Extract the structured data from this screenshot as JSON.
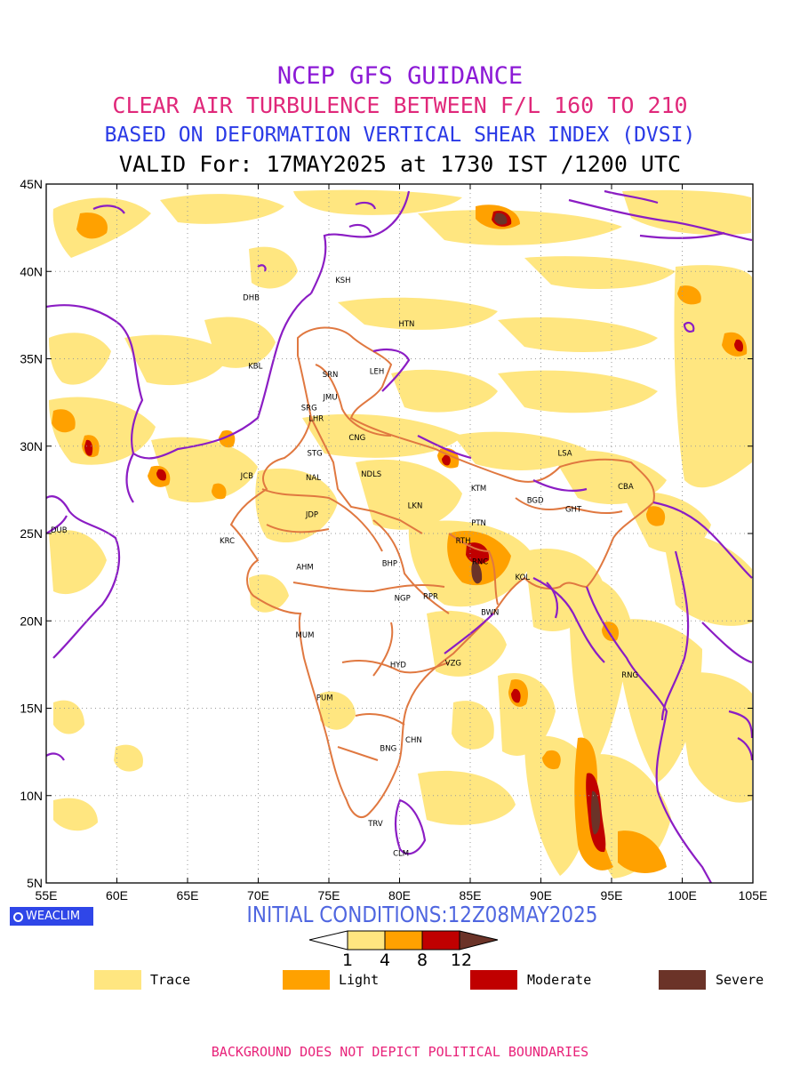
{
  "titles": {
    "line1": "NCEP GFS GUIDANCE",
    "line2": "CLEAR AIR TURBULENCE BETWEEN F/L 160 TO 210",
    "line3": "BASED ON DEFORMATION VERTICAL SHEAR INDEX (DVSI)",
    "line4": "VALID For: 17MAY2025 at 1730 IST /1200 UTC"
  },
  "title_colors": {
    "line1": "#8c1ad6",
    "line2": "#e0287a",
    "line3": "#2a3ae6",
    "line4": "#000000"
  },
  "map": {
    "lon_ticks": [
      "55E",
      "60E",
      "65E",
      "70E",
      "75E",
      "80E",
      "85E",
      "90E",
      "95E",
      "100E",
      "105E"
    ],
    "lat_ticks": [
      "45N",
      "40N",
      "35N",
      "30N",
      "25N",
      "20N",
      "15N",
      "10N",
      "5N"
    ],
    "lon_range": [
      55,
      105
    ],
    "lat_range": [
      5,
      45
    ],
    "station_labels": [
      {
        "code": "KSH",
        "lon": 76.0,
        "lat": 39.5
      },
      {
        "code": "DHB",
        "lon": 69.5,
        "lat": 38.5
      },
      {
        "code": "HTN",
        "lon": 80.5,
        "lat": 37.0
      },
      {
        "code": "KBL",
        "lon": 69.8,
        "lat": 34.6
      },
      {
        "code": "SRN",
        "lon": 75.1,
        "lat": 34.1
      },
      {
        "code": "LEH",
        "lon": 78.4,
        "lat": 34.3
      },
      {
        "code": "JMU",
        "lon": 75.1,
        "lat": 32.8
      },
      {
        "code": "SRG",
        "lon": 73.6,
        "lat": 32.2
      },
      {
        "code": "LHR",
        "lon": 74.1,
        "lat": 31.6
      },
      {
        "code": "CNG",
        "lon": 77.0,
        "lat": 30.5
      },
      {
        "code": "STG",
        "lon": 74.0,
        "lat": 29.6
      },
      {
        "code": "LSA",
        "lon": 91.7,
        "lat": 29.6
      },
      {
        "code": "JCB",
        "lon": 69.2,
        "lat": 28.3
      },
      {
        "code": "NDLS",
        "lon": 78.0,
        "lat": 28.4
      },
      {
        "code": "NAL",
        "lon": 73.9,
        "lat": 28.2
      },
      {
        "code": "KTM",
        "lon": 85.6,
        "lat": 27.6
      },
      {
        "code": "CBA",
        "lon": 96.0,
        "lat": 27.7
      },
      {
        "code": "BGD",
        "lon": 89.6,
        "lat": 26.9
      },
      {
        "code": "GHT",
        "lon": 92.3,
        "lat": 26.4
      },
      {
        "code": "LKN",
        "lon": 81.1,
        "lat": 26.6
      },
      {
        "code": "JDP",
        "lon": 73.8,
        "lat": 26.1
      },
      {
        "code": "PTN",
        "lon": 85.6,
        "lat": 25.6
      },
      {
        "code": "DUB",
        "lon": 55.9,
        "lat": 25.2
      },
      {
        "code": "RTH",
        "lon": 84.5,
        "lat": 24.6
      },
      {
        "code": "KRC",
        "lon": 67.8,
        "lat": 24.6
      },
      {
        "code": "RNC",
        "lon": 85.7,
        "lat": 23.4
      },
      {
        "code": "AHM",
        "lon": 73.3,
        "lat": 23.1
      },
      {
        "code": "BHP",
        "lon": 79.3,
        "lat": 23.3
      },
      {
        "code": "KOL",
        "lon": 88.7,
        "lat": 22.5
      },
      {
        "code": "NGP",
        "lon": 80.2,
        "lat": 21.3
      },
      {
        "code": "RPR",
        "lon": 82.2,
        "lat": 21.4
      },
      {
        "code": "BWN",
        "lon": 86.4,
        "lat": 20.5
      },
      {
        "code": "MUM",
        "lon": 73.3,
        "lat": 19.2
      },
      {
        "code": "HYD",
        "lon": 79.9,
        "lat": 17.5
      },
      {
        "code": "VZG",
        "lon": 83.8,
        "lat": 17.6
      },
      {
        "code": "RNG",
        "lon": 96.3,
        "lat": 16.9
      },
      {
        "code": "PUM",
        "lon": 74.7,
        "lat": 15.6
      },
      {
        "code": "CHN",
        "lon": 81.0,
        "lat": 13.2
      },
      {
        "code": "BNG",
        "lon": 79.2,
        "lat": 12.7
      },
      {
        "code": "TRV",
        "lon": 78.3,
        "lat": 8.4
      },
      {
        "code": "CLM",
        "lon": 80.1,
        "lat": 6.7
      }
    ]
  },
  "watermark": "WEACLIM",
  "initial_conditions": "INITIAL CONDITIONS:12Z08MAY2025",
  "colorbar": {
    "ticks": [
      "1",
      "4",
      "8",
      "12"
    ],
    "colors": [
      "#ffe680",
      "#ffa100",
      "#c00000",
      "#6b3328"
    ]
  },
  "legend": [
    {
      "label": "Trace",
      "color": "#ffe680"
    },
    {
      "label": "Light",
      "color": "#ffa100"
    },
    {
      "label": "Moderate",
      "color": "#c00000"
    },
    {
      "label": "Severe",
      "color": "#6b3328"
    }
  ],
  "disclaimer": "BACKGROUND DOES NOT DEPICT POLITICAL BOUNDARIES"
}
